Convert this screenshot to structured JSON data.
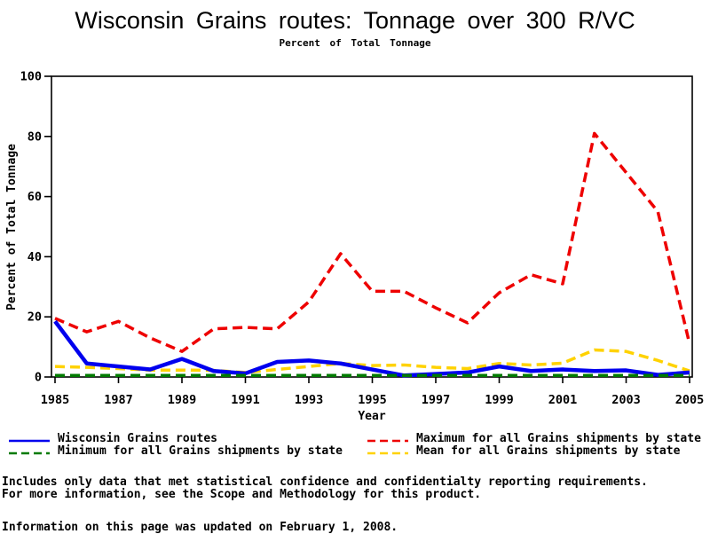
{
  "page": {
    "title": "Wisconsin Grains routes: Tonnage over 300 R/VC",
    "subtitle": "Percent of Total Tonnage"
  },
  "chart_data": {
    "type": "line",
    "title": "Wisconsin Grains routes: Tonnage over 300 R/VC",
    "subtitle": "Percent of Total Tonnage",
    "xlabel": "Year",
    "ylabel": "Percent of Total Tonnage",
    "xlim": [
      1985,
      2005
    ],
    "ylim": [
      0,
      100
    ],
    "x_ticks": [
      1985,
      1987,
      1989,
      1991,
      1993,
      1995,
      1997,
      1999,
      2001,
      2003,
      2005
    ],
    "y_ticks": [
      0,
      20,
      40,
      60,
      80,
      100
    ],
    "grid": false,
    "frame": true,
    "legend_position": "bottom-two-columns",
    "x": [
      1985,
      1986,
      1987,
      1988,
      1989,
      1990,
      1991,
      1992,
      1993,
      1994,
      1995,
      1996,
      1997,
      1998,
      1999,
      2000,
      2001,
      2002,
      2003,
      2004,
      2005
    ],
    "series": [
      {
        "name": "Wisconsin Grains routes",
        "color": "#0000ee",
        "dash": "solid",
        "width": 4.5,
        "values": [
          18.5,
          4.5,
          3.5,
          2.5,
          6,
          2,
          1.2,
          5,
          5.5,
          4.5,
          2.5,
          0.5,
          1,
          1.5,
          3.5,
          2,
          2.5,
          2,
          2.2,
          0.7,
          1.5
        ]
      },
      {
        "name": "Minimum for all Grains shipments by state",
        "color": "#007a00",
        "dash": "dashed",
        "width": 3.5,
        "values": [
          0.5,
          0.5,
          0.5,
          0.5,
          0.5,
          0.5,
          0.5,
          0.5,
          0.5,
          0.5,
          0.5,
          0.5,
          0.5,
          0.5,
          0.5,
          0.5,
          0.5,
          0.5,
          0.5,
          0.5,
          0.5
        ]
      },
      {
        "name": "Maximum for all Grains shipments by state",
        "color": "#ee0000",
        "dash": "dashed",
        "width": 3.5,
        "values": [
          19.5,
          15,
          18.5,
          13,
          8.5,
          16,
          16.5,
          16,
          25,
          41,
          28.5,
          28.5,
          23,
          18,
          28,
          34,
          31,
          81,
          68,
          55,
          11
        ]
      },
      {
        "name": "Mean for all Grains shipments by state",
        "color": "#ffd200",
        "dash": "dashed",
        "width": 3.5,
        "values": [
          3.5,
          3.2,
          2.8,
          2.3,
          2.3,
          2.2,
          1.5,
          2.5,
          3.5,
          4.5,
          3.8,
          4,
          3.2,
          2.8,
          4.5,
          4,
          4.6,
          9,
          8.5,
          5.5,
          2
        ]
      }
    ]
  },
  "footer": {
    "line1": "Includes only data that met statistical confidence and confidentialty reporting requirements.",
    "line2": "For more information, see the Scope and Methodology for this product.",
    "updated": "Information on this page was updated on February 1, 2008."
  }
}
